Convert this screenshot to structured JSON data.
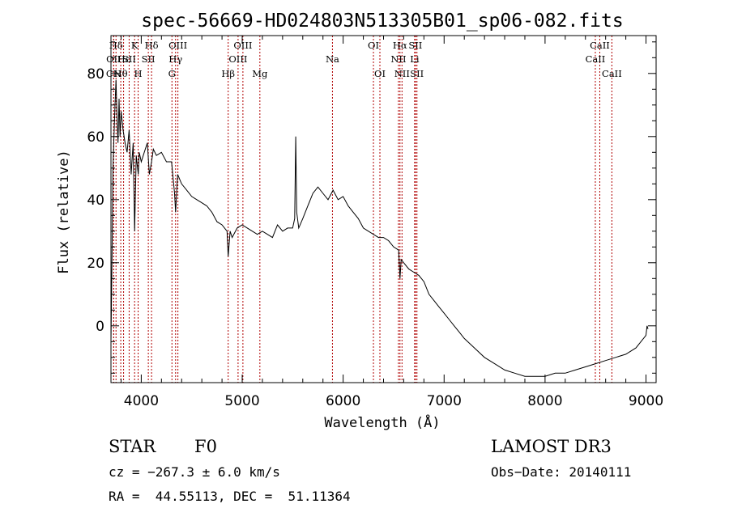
{
  "chart_data": {
    "type": "line",
    "title": "spec-56669-HD024803N513305B01_sp06-082.fits",
    "xlabel": "Wavelength (Å)",
    "ylabel": "Flux (relative)",
    "xlim": [
      3700,
      9100
    ],
    "ylim": [
      -18,
      92
    ],
    "xticks": [
      4000,
      5000,
      6000,
      7000,
      8000,
      9000
    ],
    "yticks": [
      0,
      20,
      40,
      60,
      80
    ],
    "series": [
      {
        "name": "flux",
        "x": [
          3700,
          3710,
          3720,
          3730,
          3740,
          3750,
          3760,
          3770,
          3780,
          3790,
          3800,
          3820,
          3840,
          3860,
          3880,
          3900,
          3920,
          3934,
          3950,
          3970,
          3980,
          4000,
          4030,
          4060,
          4080,
          4102,
          4120,
          4150,
          4200,
          4250,
          4300,
          4330,
          4340,
          4360,
          4400,
          4450,
          4500,
          4550,
          4600,
          4650,
          4700,
          4750,
          4800,
          4850,
          4861,
          4880,
          4900,
          4950,
          5000,
          5050,
          5100,
          5150,
          5200,
          5250,
          5300,
          5350,
          5400,
          5450,
          5500,
          5520,
          5530,
          5540,
          5560,
          5600,
          5650,
          5700,
          5750,
          5800,
          5850,
          5900,
          5950,
          6000,
          6050,
          6100,
          6150,
          6200,
          6250,
          6300,
          6350,
          6400,
          6450,
          6500,
          6550,
          6563,
          6575,
          6600,
          6650,
          6700,
          6750,
          6800,
          6850,
          6900,
          6950,
          7000,
          7050,
          7100,
          7150,
          7200,
          7300,
          7400,
          7500,
          7600,
          7700,
          7800,
          7900,
          8000,
          8100,
          8200,
          8300,
          8400,
          8500,
          8600,
          8700,
          8800,
          8900,
          8950,
          9000,
          9010,
          9020
        ],
        "y": [
          -5,
          20,
          50,
          60,
          70,
          78,
          66,
          58,
          72,
          60,
          68,
          62,
          58,
          55,
          62,
          48,
          58,
          30,
          54,
          48,
          55,
          52,
          55,
          58,
          48,
          52,
          56,
          54,
          55,
          52,
          52,
          42,
          36,
          48,
          45,
          43,
          41,
          40,
          39,
          38,
          36,
          33,
          32,
          30,
          22,
          30,
          28,
          31,
          32,
          31,
          30,
          29,
          30,
          29,
          28,
          32,
          30,
          31,
          31,
          34,
          60,
          36,
          31,
          34,
          38,
          42,
          44,
          42,
          40,
          43,
          40,
          41,
          38,
          36,
          34,
          31,
          30,
          29,
          28,
          28,
          27,
          25,
          24,
          15,
          21,
          20,
          18,
          17,
          16,
          14,
          10,
          8,
          6,
          4,
          2,
          0,
          -2,
          -4,
          -7,
          -10,
          -12,
          -14,
          -15,
          -16,
          -16,
          -16,
          -15,
          -15,
          -14,
          -13,
          -12,
          -11,
          -10,
          -9,
          -7,
          -5,
          -3,
          0,
          -1
        ]
      }
    ],
    "spectral_lines": [
      {
        "name": "Hδ",
        "x": 3750,
        "row": 1
      },
      {
        "name": "OII",
        "x": 3727,
        "row": 2
      },
      {
        "name": "CN",
        "x": 3727,
        "row": 3
      },
      {
        "name": "K",
        "x": 3934,
        "row": 1
      },
      {
        "name": "Hε",
        "x": 3825,
        "row": 2
      },
      {
        "name": "Hθ",
        "x": 3797,
        "row": 3
      },
      {
        "name": "SII",
        "x": 3880,
        "row": 2
      },
      {
        "name": "H",
        "x": 3969,
        "row": 3
      },
      {
        "name": "Hδ",
        "x": 4102,
        "row": 1
      },
      {
        "name": "SII",
        "x": 4070,
        "row": 2
      },
      {
        "name": "OIII",
        "x": 4363,
        "row": 1
      },
      {
        "name": "Hγ",
        "x": 4340,
        "row": 2
      },
      {
        "name": "G",
        "x": 4304,
        "row": 3
      },
      {
        "name": "Hβ",
        "x": 4861,
        "row": 3
      },
      {
        "name": "OIII",
        "x": 5007,
        "row": 1
      },
      {
        "name": "OIII",
        "x": 4959,
        "row": 2
      },
      {
        "name": "Mg",
        "x": 5175,
        "row": 3
      },
      {
        "name": "Na",
        "x": 5894,
        "row": 2
      },
      {
        "name": "OI",
        "x": 6300,
        "row": 1
      },
      {
        "name": "OI",
        "x": 6364,
        "row": 3
      },
      {
        "name": "Hα",
        "x": 6563,
        "row": 1
      },
      {
        "name": "SII",
        "x": 6716,
        "row": 1
      },
      {
        "name": "NII",
        "x": 6548,
        "row": 2
      },
      {
        "name": "Li",
        "x": 6708,
        "row": 2
      },
      {
        "name": "NII",
        "x": 6583,
        "row": 3
      },
      {
        "name": "SII",
        "x": 6731,
        "row": 3
      },
      {
        "name": "CaII",
        "x": 8542,
        "row": 1
      },
      {
        "name": "CaII",
        "x": 8498,
        "row": 2
      },
      {
        "name": "CaII",
        "x": 8662,
        "row": 3
      }
    ],
    "line_marker_color": "#b00000",
    "grid": false
  },
  "info": {
    "object_class": "STAR",
    "subclass": "F0",
    "survey": "LAMOST DR3",
    "redshift": "cz = −267.3 ± 6.0 km/s",
    "coords": "RA =  44.55113, DEC =  51.11364",
    "obs_date": "Obs−Date: 20140111"
  }
}
